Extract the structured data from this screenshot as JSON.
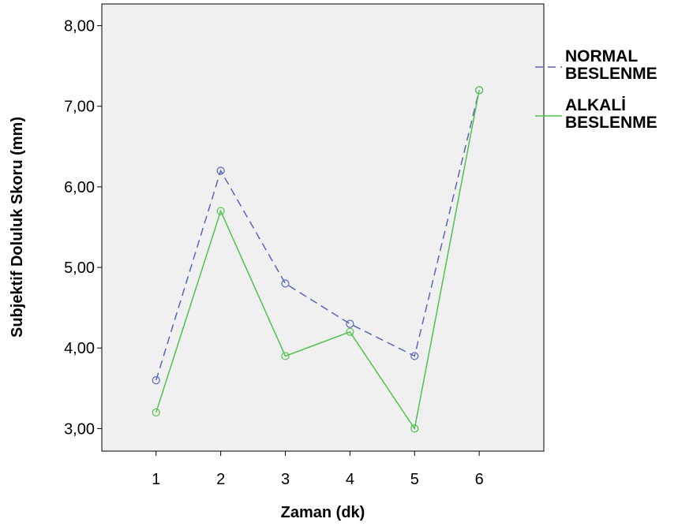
{
  "chart_data": {
    "type": "line",
    "x_label": "Zaman (dk)",
    "y_label": "Subjektif Doluluk Skoru (mm)",
    "x": [
      1,
      2,
      3,
      4,
      5,
      6
    ],
    "xlim": [
      0.16,
      7.0
    ],
    "xticks": [
      1,
      2,
      3,
      4,
      5,
      6
    ],
    "ylim": [
      2.72,
      8.27
    ],
    "yticks": [
      {
        "value": 3,
        "label": "3,00"
      },
      {
        "value": 4,
        "label": "4,00"
      },
      {
        "value": 5,
        "label": "5,00"
      },
      {
        "value": 6,
        "label": "6,00"
      },
      {
        "value": 7,
        "label": "7,00"
      },
      {
        "value": 8,
        "label": "8,00"
      }
    ],
    "series": [
      {
        "name": "NORMAL BESLENME",
        "color": "#5965b8",
        "dashed": true,
        "values": [
          3.6,
          6.2,
          4.8,
          4.3,
          3.9,
          7.2
        ]
      },
      {
        "name": "ALKALİ BESLENME",
        "color": "#4ec24e",
        "dashed": false,
        "values": [
          3.2,
          5.7,
          3.9,
          4.2,
          3.0,
          7.2
        ]
      }
    ],
    "legend": "right"
  }
}
